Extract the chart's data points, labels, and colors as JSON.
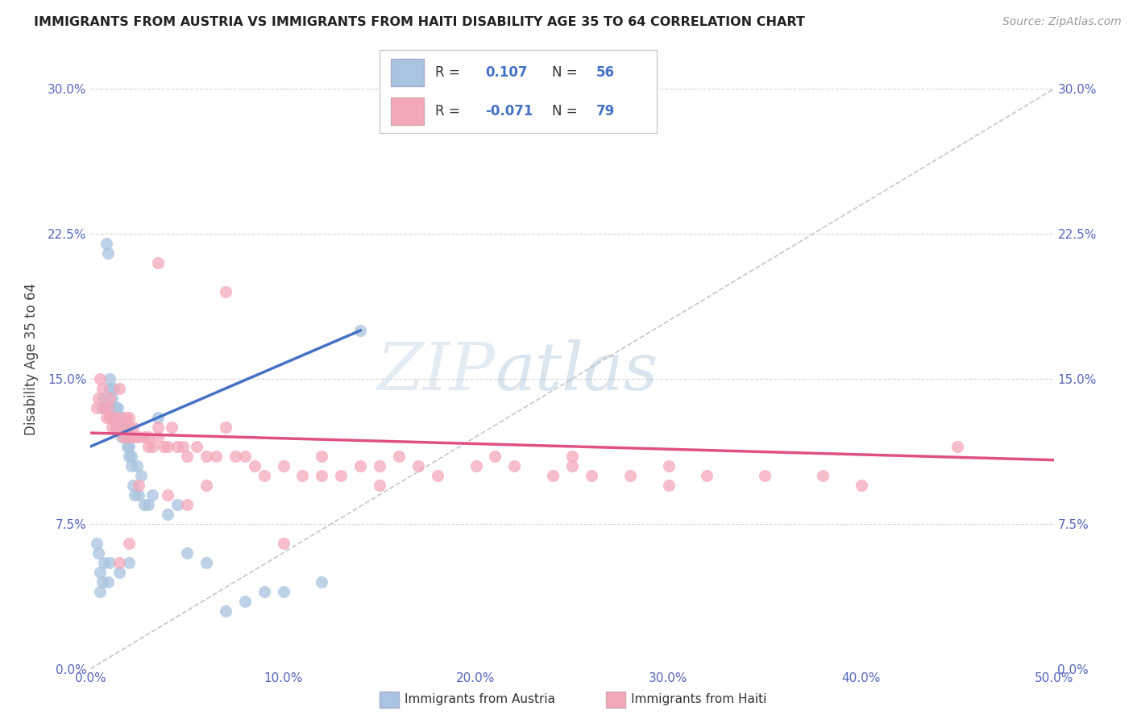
{
  "title": "IMMIGRANTS FROM AUSTRIA VS IMMIGRANTS FROM HAITI DISABILITY AGE 35 TO 64 CORRELATION CHART",
  "source": "Source: ZipAtlas.com",
  "ylabel": "Disability Age 35 to 64",
  "xlim": [
    0,
    50
  ],
  "ylim": [
    0,
    32
  ],
  "xticks": [
    0,
    10,
    20,
    30,
    40,
    50
  ],
  "xticklabels": [
    "0.0%",
    "10.0%",
    "20.0%",
    "30.0%",
    "40.0%",
    "50.0%"
  ],
  "yticks": [
    0,
    7.5,
    15.0,
    22.5,
    30.0
  ],
  "yticklabels": [
    "0.0%",
    "7.5%",
    "15.0%",
    "22.5%",
    "30.0%"
  ],
  "austria_R": 0.107,
  "austria_N": 56,
  "haiti_R": -0.071,
  "haiti_N": 79,
  "austria_color": "#a8c4e0",
  "haiti_color": "#f4a7b9",
  "austria_line_color": "#4472c4",
  "haiti_line_color": "#e05080",
  "ref_line_color": "#b8b8b8",
  "legend_austria_label": "Immigrants from Austria",
  "legend_haiti_label": "Immigrants from Haiti",
  "austria_line_x0": 0.0,
  "austria_line_y0": 11.5,
  "austria_line_x1": 14.0,
  "austria_line_y1": 17.5,
  "haiti_line_x0": 0.0,
  "haiti_line_y0": 12.2,
  "haiti_line_x1": 50.0,
  "haiti_line_y1": 10.8,
  "austria_scatter_x": [
    0.3,
    0.4,
    0.5,
    0.6,
    0.6,
    0.7,
    0.7,
    0.8,
    0.8,
    0.9,
    1.0,
    1.0,
    1.0,
    1.0,
    1.1,
    1.1,
    1.2,
    1.2,
    1.3,
    1.3,
    1.4,
    1.4,
    1.5,
    1.5,
    1.6,
    1.6,
    1.7,
    1.8,
    1.9,
    2.0,
    2.0,
    2.1,
    2.1,
    2.2,
    2.3,
    2.4,
    2.5,
    2.6,
    2.8,
    3.0,
    3.2,
    3.5,
    4.0,
    4.5,
    5.0,
    6.0,
    7.0,
    8.0,
    9.0,
    10.0,
    12.0,
    14.0,
    0.5,
    0.9,
    1.5,
    2.0
  ],
  "austria_scatter_y": [
    6.5,
    6.0,
    5.0,
    13.5,
    4.5,
    14.0,
    5.5,
    22.0,
    13.5,
    21.5,
    15.0,
    14.5,
    13.5,
    5.5,
    14.0,
    13.0,
    14.5,
    13.0,
    13.5,
    12.5,
    13.5,
    12.5,
    13.0,
    12.5,
    13.0,
    12.0,
    12.5,
    12.0,
    11.5,
    11.5,
    11.0,
    11.0,
    10.5,
    9.5,
    9.0,
    10.5,
    9.0,
    10.0,
    8.5,
    8.5,
    9.0,
    13.0,
    8.0,
    8.5,
    6.0,
    5.5,
    3.0,
    3.5,
    4.0,
    4.0,
    4.5,
    17.5,
    4.0,
    4.5,
    5.0,
    5.5
  ],
  "haiti_scatter_x": [
    0.3,
    0.4,
    0.5,
    0.6,
    0.7,
    0.8,
    0.9,
    1.0,
    1.0,
    1.1,
    1.2,
    1.3,
    1.4,
    1.5,
    1.6,
    1.7,
    1.8,
    1.9,
    2.0,
    2.0,
    2.1,
    2.2,
    2.3,
    2.5,
    2.8,
    3.0,
    3.0,
    3.2,
    3.5,
    3.5,
    3.8,
    4.0,
    4.2,
    4.5,
    4.8,
    5.0,
    5.5,
    6.0,
    6.5,
    7.0,
    7.5,
    8.0,
    8.5,
    9.0,
    10.0,
    11.0,
    12.0,
    12.0,
    13.0,
    14.0,
    15.0,
    16.0,
    17.0,
    18.0,
    20.0,
    21.0,
    22.0,
    24.0,
    25.0,
    26.0,
    28.0,
    30.0,
    32.0,
    35.0,
    38.0,
    40.0,
    45.0,
    15.0,
    25.0,
    30.0,
    7.0,
    3.5,
    2.0,
    1.5,
    10.0,
    6.0,
    4.0,
    2.5,
    5.0
  ],
  "haiti_scatter_y": [
    13.5,
    14.0,
    15.0,
    14.5,
    13.5,
    13.0,
    13.5,
    14.0,
    13.0,
    12.5,
    13.0,
    12.5,
    13.0,
    14.5,
    12.5,
    12.0,
    13.0,
    12.0,
    13.0,
    12.5,
    12.0,
    12.5,
    12.0,
    12.0,
    12.0,
    12.0,
    11.5,
    11.5,
    12.5,
    12.0,
    11.5,
    11.5,
    12.5,
    11.5,
    11.5,
    11.0,
    11.5,
    11.0,
    11.0,
    12.5,
    11.0,
    11.0,
    10.5,
    10.0,
    10.5,
    10.0,
    10.0,
    11.0,
    10.0,
    10.5,
    10.5,
    11.0,
    10.5,
    10.0,
    10.5,
    11.0,
    10.5,
    10.0,
    11.0,
    10.0,
    10.0,
    10.5,
    10.0,
    10.0,
    10.0,
    9.5,
    11.5,
    9.5,
    10.5,
    9.5,
    19.5,
    21.0,
    6.5,
    5.5,
    6.5,
    9.5,
    9.0,
    9.5,
    8.5
  ]
}
